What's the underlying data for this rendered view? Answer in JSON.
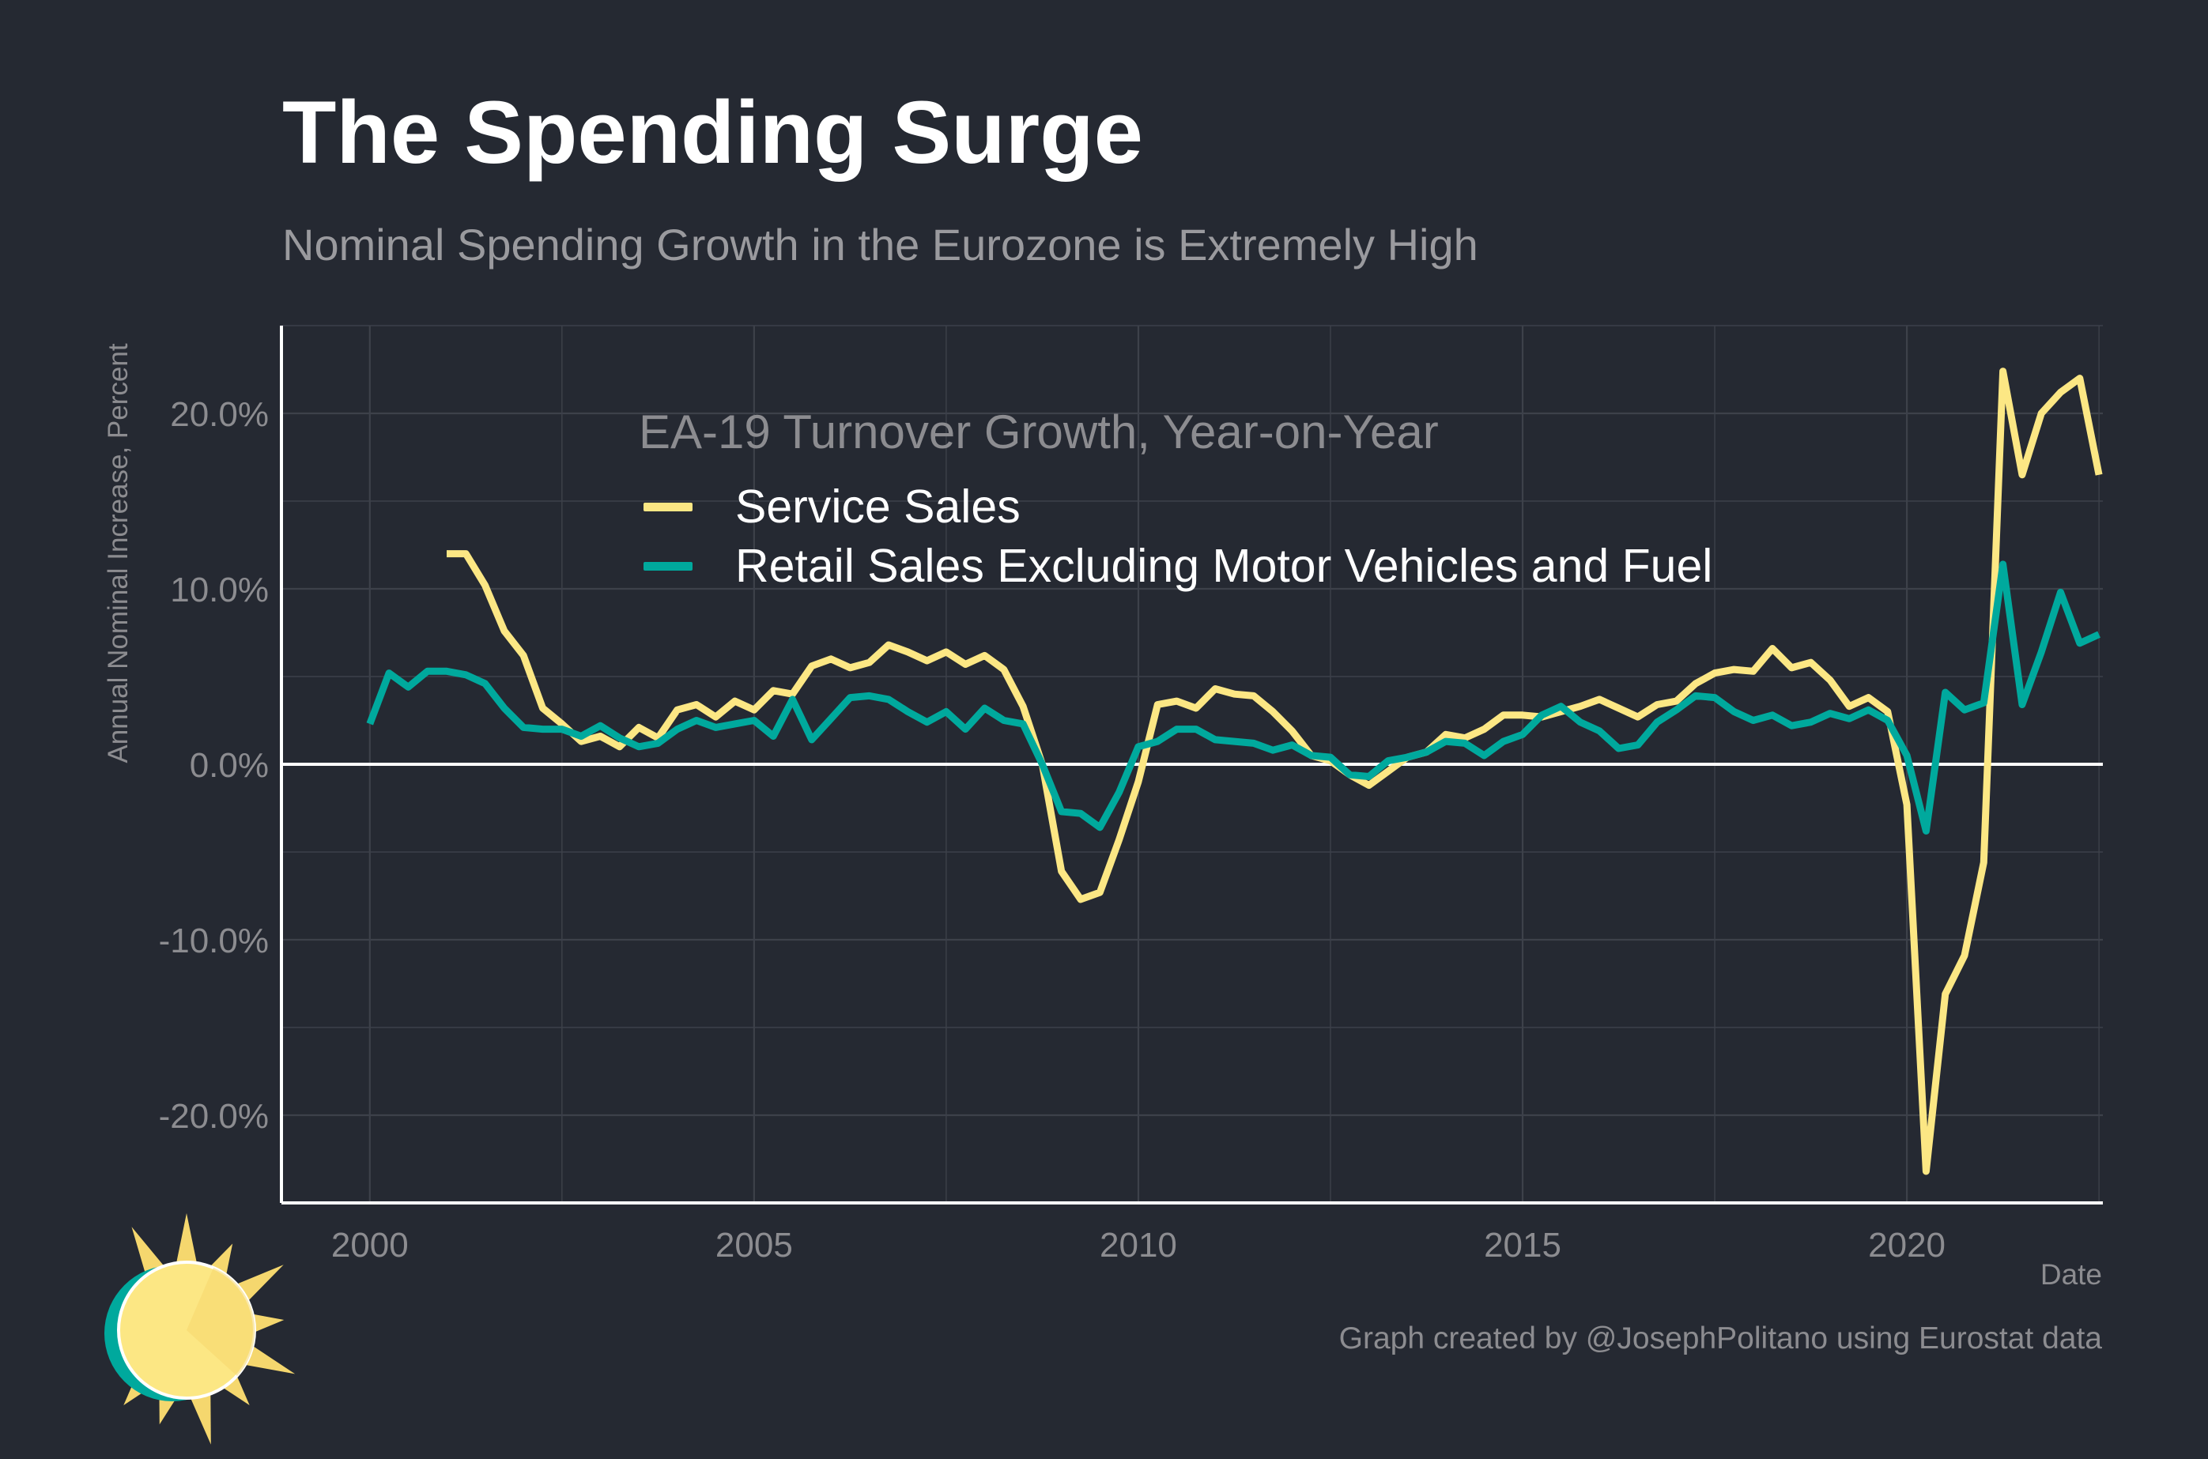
{
  "header": {
    "title": "The Spending Surge",
    "subtitle": "Nominal Spending Growth in the Eurozone is Extremely High"
  },
  "footer": {
    "caption": "Graph created by @JosephPolitano using Eurostat data"
  },
  "colors": {
    "background": "#252932",
    "grid": "#3d414a",
    "service": "#fce784",
    "retail": "#00a99d",
    "logo_ring": "#00a99d",
    "logo_sun": "#fce784",
    "logo_rays": "#f5d76e"
  },
  "logo": {
    "icon": "sun-icon"
  },
  "chart_data": {
    "type": "line",
    "title": "",
    "xlabel": "Date",
    "ylabel": "Annual Nominal Increase, Percent",
    "legend_title": "EA-19 Turnover Growth, Year-on-Year",
    "legend_position": "top-left inside plot",
    "xlim": [
      1998.85,
      2022.55
    ],
    "ylim": [
      -25.0,
      25.0
    ],
    "x_ticks": [
      2000,
      2005,
      2010,
      2015,
      2020
    ],
    "x_tick_labels": [
      "2000",
      "2005",
      "2010",
      "2015",
      "2020"
    ],
    "y_ticks": [
      -20,
      -10,
      0,
      10,
      20
    ],
    "y_tick_labels": [
      "-20.0%",
      "-10.0%",
      "0.0%",
      "10.0%",
      "20.0%"
    ],
    "grid": true,
    "series": [
      {
        "name": "Service Sales",
        "x": [
          2001.0,
          2001.25,
          2001.5,
          2001.75,
          2002.0,
          2002.25,
          2002.5,
          2002.75,
          2003.0,
          2003.25,
          2003.5,
          2003.75,
          2004.0,
          2004.25,
          2004.5,
          2004.75,
          2005.0,
          2005.25,
          2005.5,
          2005.75,
          2006.0,
          2006.25,
          2006.5,
          2006.75,
          2007.0,
          2007.25,
          2007.5,
          2007.75,
          2008.0,
          2008.25,
          2008.5,
          2008.75,
          2009.0,
          2009.25,
          2009.5,
          2009.75,
          2010.0,
          2010.25,
          2010.5,
          2010.75,
          2011.0,
          2011.25,
          2011.5,
          2011.75,
          2012.0,
          2012.25,
          2012.5,
          2012.75,
          2013.0,
          2013.25,
          2013.5,
          2013.75,
          2014.0,
          2014.25,
          2014.5,
          2014.75,
          2015.0,
          2015.25,
          2015.5,
          2015.75,
          2016.0,
          2016.25,
          2016.5,
          2016.75,
          2017.0,
          2017.25,
          2017.5,
          2017.75,
          2018.0,
          2018.25,
          2018.5,
          2018.75,
          2019.0,
          2019.25,
          2019.5,
          2019.75,
          2020.0,
          2020.25,
          2020.5,
          2020.75,
          2021.0,
          2021.25,
          2021.5,
          2021.75,
          2022.0,
          2022.25,
          2022.5
        ],
        "values": [
          12.0,
          12.0,
          10.2,
          7.6,
          6.2,
          3.2,
          2.3,
          1.3,
          1.6,
          1.0,
          2.1,
          1.5,
          3.1,
          3.4,
          2.7,
          3.6,
          3.1,
          4.2,
          4.0,
          5.6,
          6.0,
          5.5,
          5.8,
          6.8,
          6.4,
          5.9,
          6.4,
          5.7,
          6.2,
          5.4,
          3.3,
          0.0,
          -6.1,
          -7.7,
          -7.3,
          -4.3,
          -1.0,
          3.4,
          3.6,
          3.2,
          4.3,
          4.0,
          3.9,
          3.0,
          1.9,
          0.5,
          0.2,
          -0.6,
          -1.2,
          -0.4,
          0.4,
          0.7,
          1.7,
          1.5,
          2.0,
          2.8,
          2.8,
          2.7,
          3.0,
          3.3,
          3.7,
          3.2,
          2.7,
          3.4,
          3.6,
          4.6,
          5.2,
          5.4,
          5.3,
          6.6,
          5.5,
          5.8,
          4.8,
          3.3,
          3.8,
          3.0,
          -2.3,
          -23.2,
          -13.1,
          -10.9,
          -5.6,
          22.4,
          16.5,
          20.0,
          21.2,
          22.0,
          16.5
        ]
      },
      {
        "name": "Retail Sales Excluding Motor Vehicles and Fuel",
        "x": [
          2000.0,
          2000.25,
          2000.5,
          2000.75,
          2001.0,
          2001.25,
          2001.5,
          2001.75,
          2002.0,
          2002.25,
          2002.5,
          2002.75,
          2003.0,
          2003.25,
          2003.5,
          2003.75,
          2004.0,
          2004.25,
          2004.5,
          2004.75,
          2005.0,
          2005.25,
          2005.5,
          2005.75,
          2006.0,
          2006.25,
          2006.5,
          2006.75,
          2007.0,
          2007.25,
          2007.5,
          2007.75,
          2008.0,
          2008.25,
          2008.5,
          2008.75,
          2009.0,
          2009.25,
          2009.5,
          2009.75,
          2010.0,
          2010.25,
          2010.5,
          2010.75,
          2011.0,
          2011.25,
          2011.5,
          2011.75,
          2012.0,
          2012.25,
          2012.5,
          2012.75,
          2013.0,
          2013.25,
          2013.5,
          2013.75,
          2014.0,
          2014.25,
          2014.5,
          2014.75,
          2015.0,
          2015.25,
          2015.5,
          2015.75,
          2016.0,
          2016.25,
          2016.5,
          2016.75,
          2017.0,
          2017.25,
          2017.5,
          2017.75,
          2018.0,
          2018.25,
          2018.5,
          2018.75,
          2019.0,
          2019.25,
          2019.5,
          2019.75,
          2020.0,
          2020.25,
          2020.5,
          2020.75,
          2021.0,
          2021.25,
          2021.5,
          2021.75,
          2022.0,
          2022.25,
          2022.5
        ],
        "values": [
          2.3,
          5.2,
          4.4,
          5.3,
          5.3,
          5.1,
          4.6,
          3.2,
          2.1,
          2.0,
          2.0,
          1.6,
          2.2,
          1.5,
          1.0,
          1.2,
          2.0,
          2.5,
          2.1,
          2.3,
          2.5,
          1.6,
          3.7,
          1.4,
          2.6,
          3.8,
          3.9,
          3.7,
          3.0,
          2.4,
          3.0,
          2.0,
          3.2,
          2.5,
          2.3,
          0.0,
          -2.7,
          -2.8,
          -3.6,
          -1.6,
          1.0,
          1.3,
          2.0,
          2.0,
          1.4,
          1.3,
          1.2,
          0.8,
          1.1,
          0.5,
          0.4,
          -0.6,
          -0.7,
          0.2,
          0.4,
          0.7,
          1.3,
          1.2,
          0.5,
          1.3,
          1.7,
          2.8,
          3.3,
          2.4,
          1.9,
          0.9,
          1.1,
          2.4,
          3.1,
          3.9,
          3.8,
          3.0,
          2.5,
          2.8,
          2.2,
          2.4,
          2.9,
          2.6,
          3.1,
          2.5,
          0.5,
          -3.8,
          4.1,
          3.1,
          3.5,
          11.4,
          3.4,
          6.4,
          9.8,
          6.9,
          7.4
        ]
      }
    ]
  }
}
